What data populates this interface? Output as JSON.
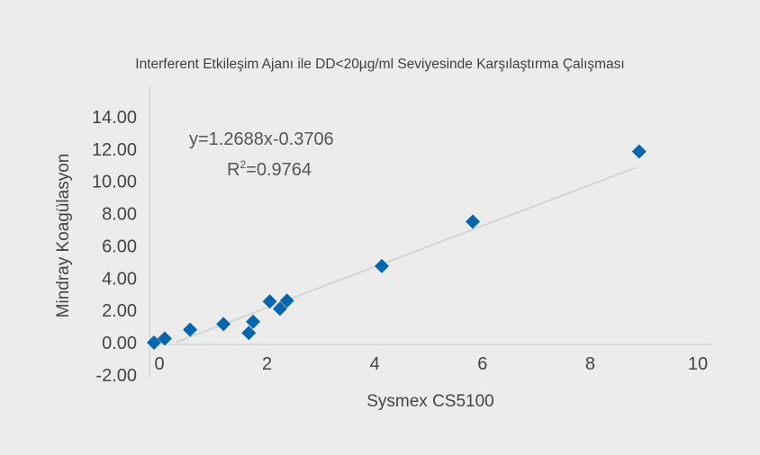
{
  "chart_data": {
    "type": "scatter",
    "title": "Interferent Etkileşim Ajanı ile DD<20µg/ml Seviyesinde Karşılaştırma Çalışması",
    "xlabel": "Sysmex CS5100",
    "ylabel": "Mindray Koagülasyon",
    "xlim": [
      0,
      10
    ],
    "ylim": [
      -2,
      14
    ],
    "xticks": [
      "0",
      "2",
      "4",
      "6",
      "8",
      "10"
    ],
    "yticks": [
      "-2.00",
      "0.00",
      "2.00",
      "4.00",
      "6.00",
      "8.00",
      "10.00",
      "12.00",
      "14.00"
    ],
    "grid": false,
    "marker": "diamond",
    "marker_color": "#0565ad",
    "trendline_color": "#cfcfcf",
    "points": [
      {
        "x": -0.1,
        "y": 0.0
      },
      {
        "x": 0.1,
        "y": 0.25
      },
      {
        "x": 0.57,
        "y": 0.8
      },
      {
        "x": 1.19,
        "y": 1.15
      },
      {
        "x": 1.66,
        "y": 0.6
      },
      {
        "x": 1.74,
        "y": 1.3
      },
      {
        "x": 2.05,
        "y": 2.55
      },
      {
        "x": 2.24,
        "y": 2.1
      },
      {
        "x": 2.37,
        "y": 2.6
      },
      {
        "x": 4.13,
        "y": 4.75
      },
      {
        "x": 5.82,
        "y": 7.5
      },
      {
        "x": 8.91,
        "y": 11.85
      }
    ],
    "trendline": {
      "slope": 1.2688,
      "intercept": -0.3706,
      "x_range": [
        0.3,
        8.85
      ]
    },
    "equation_label": "y=1.2688x-0.3706",
    "r2_prefix": "R",
    "r2_sup": "2",
    "r2_value": "=0.9764"
  }
}
